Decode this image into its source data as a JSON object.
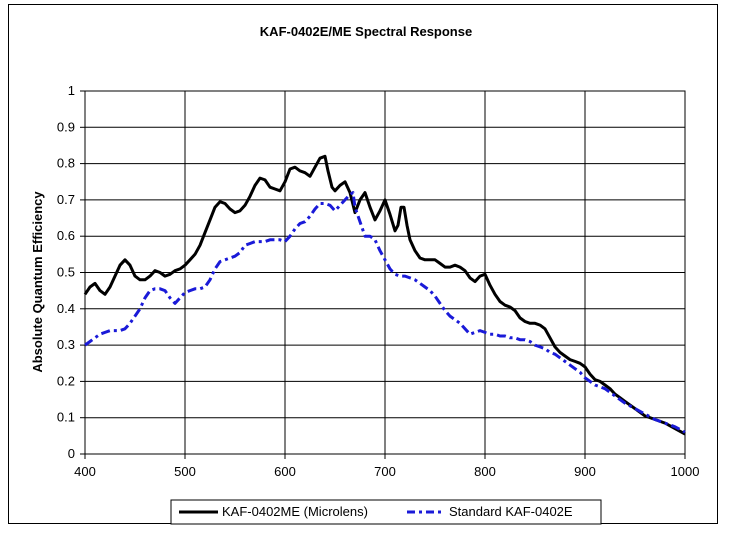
{
  "chart_data": {
    "type": "line",
    "title": "KAF-0402E/ME Spectral Response",
    "xlabel": "",
    "ylabel": "Absolute Quantum Efficiency",
    "xlim": [
      400,
      1000
    ],
    "ylim": [
      0,
      1
    ],
    "x_ticks": [
      "400",
      "500",
      "600",
      "700",
      "800",
      "900",
      "1000"
    ],
    "y_ticks": [
      "0",
      "0.1",
      "0.2",
      "0.3",
      "0.4",
      "0.5",
      "0.6",
      "0.7",
      "0.8",
      "0.9",
      "1"
    ],
    "grid": "horizontal and vertical",
    "legend_position": "bottom",
    "series": [
      {
        "name": "KAF-0402ME (Microlens)",
        "color": "#000000",
        "style": "solid",
        "points": [
          [
            400,
            0.44
          ],
          [
            405,
            0.46
          ],
          [
            410,
            0.47
          ],
          [
            415,
            0.45
          ],
          [
            420,
            0.44
          ],
          [
            425,
            0.46
          ],
          [
            430,
            0.49
          ],
          [
            435,
            0.52
          ],
          [
            440,
            0.535
          ],
          [
            445,
            0.52
          ],
          [
            450,
            0.49
          ],
          [
            455,
            0.48
          ],
          [
            460,
            0.48
          ],
          [
            465,
            0.49
          ],
          [
            470,
            0.505
          ],
          [
            475,
            0.5
          ],
          [
            480,
            0.49
          ],
          [
            485,
            0.495
          ],
          [
            490,
            0.505
          ],
          [
            495,
            0.51
          ],
          [
            500,
            0.52
          ],
          [
            505,
            0.535
          ],
          [
            510,
            0.55
          ],
          [
            515,
            0.575
          ],
          [
            520,
            0.61
          ],
          [
            525,
            0.645
          ],
          [
            530,
            0.68
          ],
          [
            535,
            0.695
          ],
          [
            540,
            0.69
          ],
          [
            545,
            0.675
          ],
          [
            550,
            0.665
          ],
          [
            555,
            0.67
          ],
          [
            560,
            0.685
          ],
          [
            565,
            0.71
          ],
          [
            570,
            0.74
          ],
          [
            575,
            0.76
          ],
          [
            580,
            0.755
          ],
          [
            585,
            0.735
          ],
          [
            590,
            0.73
          ],
          [
            595,
            0.725
          ],
          [
            600,
            0.75
          ],
          [
            605,
            0.785
          ],
          [
            610,
            0.79
          ],
          [
            615,
            0.78
          ],
          [
            620,
            0.775
          ],
          [
            625,
            0.765
          ],
          [
            630,
            0.79
          ],
          [
            635,
            0.815
          ],
          [
            640,
            0.82
          ],
          [
            643,
            0.78
          ],
          [
            647,
            0.735
          ],
          [
            650,
            0.725
          ],
          [
            655,
            0.74
          ],
          [
            660,
            0.75
          ],
          [
            665,
            0.72
          ],
          [
            670,
            0.665
          ],
          [
            675,
            0.7
          ],
          [
            680,
            0.72
          ],
          [
            685,
            0.68
          ],
          [
            690,
            0.645
          ],
          [
            695,
            0.67
          ],
          [
            700,
            0.7
          ],
          [
            705,
            0.66
          ],
          [
            710,
            0.615
          ],
          [
            713,
            0.63
          ],
          [
            716,
            0.68
          ],
          [
            719,
            0.68
          ],
          [
            722,
            0.63
          ],
          [
            725,
            0.59
          ],
          [
            730,
            0.56
          ],
          [
            735,
            0.54
          ],
          [
            740,
            0.535
          ],
          [
            745,
            0.535
          ],
          [
            750,
            0.535
          ],
          [
            755,
            0.525
          ],
          [
            760,
            0.515
          ],
          [
            765,
            0.515
          ],
          [
            770,
            0.52
          ],
          [
            775,
            0.515
          ],
          [
            780,
            0.505
          ],
          [
            785,
            0.485
          ],
          [
            790,
            0.475
          ],
          [
            795,
            0.49
          ],
          [
            800,
            0.495
          ],
          [
            805,
            0.465
          ],
          [
            810,
            0.44
          ],
          [
            815,
            0.42
          ],
          [
            820,
            0.41
          ],
          [
            825,
            0.405
          ],
          [
            830,
            0.395
          ],
          [
            835,
            0.375
          ],
          [
            840,
            0.365
          ],
          [
            845,
            0.36
          ],
          [
            850,
            0.36
          ],
          [
            855,
            0.355
          ],
          [
            860,
            0.345
          ],
          [
            865,
            0.32
          ],
          [
            870,
            0.295
          ],
          [
            875,
            0.28
          ],
          [
            880,
            0.27
          ],
          [
            885,
            0.26
          ],
          [
            890,
            0.255
          ],
          [
            895,
            0.25
          ],
          [
            900,
            0.24
          ],
          [
            905,
            0.22
          ],
          [
            910,
            0.205
          ],
          [
            915,
            0.2
          ],
          [
            920,
            0.19
          ],
          [
            925,
            0.18
          ],
          [
            930,
            0.165
          ],
          [
            935,
            0.155
          ],
          [
            940,
            0.145
          ],
          [
            950,
            0.125
          ],
          [
            960,
            0.105
          ],
          [
            970,
            0.095
          ],
          [
            980,
            0.085
          ],
          [
            990,
            0.07
          ],
          [
            1000,
            0.055
          ]
        ]
      },
      {
        "name": "Standard KAF-0402E",
        "color": "#1a1ad8",
        "style": "dashed",
        "points": [
          [
            400,
            0.3
          ],
          [
            405,
            0.31
          ],
          [
            410,
            0.32
          ],
          [
            415,
            0.33
          ],
          [
            420,
            0.335
          ],
          [
            425,
            0.34
          ],
          [
            430,
            0.34
          ],
          [
            435,
            0.34
          ],
          [
            440,
            0.345
          ],
          [
            445,
            0.36
          ],
          [
            450,
            0.38
          ],
          [
            455,
            0.4
          ],
          [
            460,
            0.43
          ],
          [
            465,
            0.45
          ],
          [
            470,
            0.455
          ],
          [
            475,
            0.455
          ],
          [
            480,
            0.45
          ],
          [
            485,
            0.43
          ],
          [
            490,
            0.415
          ],
          [
            495,
            0.43
          ],
          [
            500,
            0.445
          ],
          [
            505,
            0.45
          ],
          [
            510,
            0.455
          ],
          [
            515,
            0.455
          ],
          [
            520,
            0.46
          ],
          [
            525,
            0.48
          ],
          [
            530,
            0.51
          ],
          [
            535,
            0.53
          ],
          [
            540,
            0.535
          ],
          [
            545,
            0.54
          ],
          [
            550,
            0.545
          ],
          [
            555,
            0.555
          ],
          [
            560,
            0.575
          ],
          [
            565,
            0.58
          ],
          [
            570,
            0.585
          ],
          [
            575,
            0.585
          ],
          [
            580,
            0.585
          ],
          [
            585,
            0.59
          ],
          [
            590,
            0.59
          ],
          [
            595,
            0.59
          ],
          [
            600,
            0.585
          ],
          [
            605,
            0.6
          ],
          [
            610,
            0.62
          ],
          [
            615,
            0.635
          ],
          [
            620,
            0.64
          ],
          [
            625,
            0.655
          ],
          [
            630,
            0.675
          ],
          [
            635,
            0.69
          ],
          [
            640,
            0.69
          ],
          [
            645,
            0.685
          ],
          [
            650,
            0.67
          ],
          [
            655,
            0.685
          ],
          [
            660,
            0.7
          ],
          [
            665,
            0.715
          ],
          [
            668,
            0.72
          ],
          [
            670,
            0.68
          ],
          [
            675,
            0.64
          ],
          [
            680,
            0.6
          ],
          [
            685,
            0.6
          ],
          [
            690,
            0.59
          ],
          [
            695,
            0.56
          ],
          [
            700,
            0.535
          ],
          [
            705,
            0.51
          ],
          [
            710,
            0.495
          ],
          [
            715,
            0.49
          ],
          [
            720,
            0.49
          ],
          [
            725,
            0.485
          ],
          [
            730,
            0.48
          ],
          [
            735,
            0.47
          ],
          [
            740,
            0.46
          ],
          [
            745,
            0.45
          ],
          [
            750,
            0.435
          ],
          [
            755,
            0.415
          ],
          [
            760,
            0.395
          ],
          [
            765,
            0.38
          ],
          [
            770,
            0.37
          ],
          [
            775,
            0.36
          ],
          [
            780,
            0.345
          ],
          [
            785,
            0.33
          ],
          [
            790,
            0.335
          ],
          [
            795,
            0.34
          ],
          [
            800,
            0.335
          ],
          [
            805,
            0.33
          ],
          [
            810,
            0.33
          ],
          [
            815,
            0.325
          ],
          [
            820,
            0.325
          ],
          [
            825,
            0.32
          ],
          [
            830,
            0.32
          ],
          [
            835,
            0.315
          ],
          [
            840,
            0.315
          ],
          [
            845,
            0.31
          ],
          [
            850,
            0.3
          ],
          [
            855,
            0.295
          ],
          [
            860,
            0.29
          ],
          [
            865,
            0.28
          ],
          [
            870,
            0.275
          ],
          [
            875,
            0.265
          ],
          [
            880,
            0.255
          ],
          [
            885,
            0.245
          ],
          [
            890,
            0.235
          ],
          [
            895,
            0.225
          ],
          [
            900,
            0.21
          ],
          [
            905,
            0.2
          ],
          [
            910,
            0.19
          ],
          [
            915,
            0.185
          ],
          [
            920,
            0.18
          ],
          [
            925,
            0.17
          ],
          [
            930,
            0.16
          ],
          [
            935,
            0.15
          ],
          [
            940,
            0.14
          ],
          [
            950,
            0.125
          ],
          [
            960,
            0.11
          ],
          [
            970,
            0.095
          ],
          [
            980,
            0.085
          ],
          [
            990,
            0.075
          ],
          [
            1000,
            0.06
          ]
        ]
      }
    ]
  }
}
